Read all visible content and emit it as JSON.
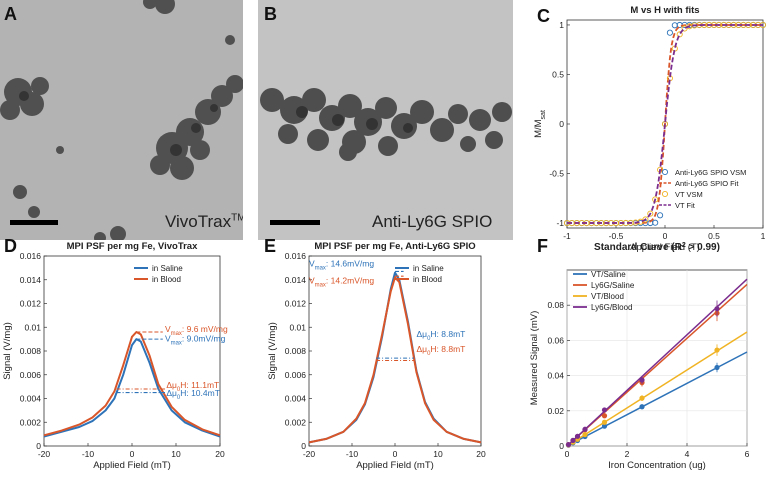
{
  "panels": {
    "a": {
      "letter": "A",
      "label": "VivoTrax",
      "label_sup": "TM"
    },
    "b": {
      "letter": "B",
      "label": "Anti-Ly6G SPIO"
    },
    "c": {
      "letter": "C"
    },
    "d": {
      "letter": "D"
    },
    "e": {
      "letter": "E"
    },
    "f": {
      "letter": "F"
    }
  },
  "colors": {
    "blue": "#2e73b8",
    "red": "#d9562a",
    "yellow": "#f0b323",
    "purple": "#7b2d8e"
  },
  "chart_data": [
    {
      "id": "C",
      "type": "line",
      "title": "M vs H with fits",
      "xlabel": "Applied Field (T)",
      "ylabel_main": "M/M",
      "ylabel_sub": "sat",
      "xlim": [
        -1,
        1
      ],
      "ylim": [
        -1.05,
        1.05
      ],
      "xticks": [
        -1,
        -0.5,
        0,
        0.5,
        1
      ],
      "xtick_labels": [
        "-1",
        "-0.5",
        "0",
        "0.5",
        "1"
      ],
      "yticks": [
        -1,
        -0.5,
        0,
        0.5,
        1
      ],
      "ytick_labels": [
        "-1",
        "-0.5",
        "0",
        "0.5",
        "1"
      ],
      "legend": [
        "Anti-Ly6G SPIO VSM",
        "Anti-Ly6G SPIO Fit",
        "VT VSM",
        "VT Fit"
      ],
      "legend_position": "bottom-right",
      "series": [
        {
          "name": "Anti-Ly6G SPIO VSM",
          "kind": "markers",
          "color": "#2e73b8",
          "model_k": 32
        },
        {
          "name": "Anti-Ly6G SPIO Fit",
          "kind": "dashed",
          "color": "#d9562a",
          "model_k": 16
        },
        {
          "name": "VT VSM",
          "kind": "markers",
          "color": "#f0b323",
          "model_k": 10
        },
        {
          "name": "VT Fit",
          "kind": "dashed",
          "color": "#7b2d8e",
          "model_k": 10
        }
      ]
    },
    {
      "id": "D",
      "type": "line",
      "title": "MPI PSF per mg Fe, VivoTrax",
      "xlabel": "Applied Field (mT)",
      "ylabel": "Signal (V/mg)",
      "xlim": [
        -20,
        20
      ],
      "ylim": [
        0,
        0.016
      ],
      "xticks": [
        -20,
        -10,
        0,
        10,
        20
      ],
      "xtick_labels": [
        "-20",
        "-10",
        "0",
        "10",
        "20"
      ],
      "yticks": [
        0,
        0.002,
        0.004,
        0.006,
        0.008,
        0.01,
        0.012,
        0.014,
        0.016
      ],
      "ytick_labels": [
        "0",
        "0.002",
        "0.004",
        "0.006",
        "0.008",
        "0.01",
        "0.012",
        "0.014",
        "0.016"
      ],
      "legend_position": "top-right",
      "series": [
        {
          "name": "in Saline",
          "color": "#2e73b8",
          "x": [
            -20,
            -16,
            -12,
            -9,
            -6,
            -4,
            -2,
            0,
            1,
            2,
            4,
            6,
            9,
            12,
            16,
            20
          ],
          "y": [
            0.0008,
            0.0012,
            0.0016,
            0.0021,
            0.003,
            0.004,
            0.006,
            0.0085,
            0.009,
            0.0088,
            0.007,
            0.0048,
            0.003,
            0.002,
            0.0013,
            0.0008
          ]
        },
        {
          "name": "in Blood",
          "color": "#d9562a",
          "x": [
            -20,
            -16,
            -12,
            -9,
            -6,
            -4,
            -2,
            0,
            1,
            2,
            4,
            6,
            9,
            12,
            16,
            20
          ],
          "y": [
            0.0009,
            0.0013,
            0.0018,
            0.0024,
            0.0034,
            0.0046,
            0.0068,
            0.0092,
            0.0096,
            0.0094,
            0.0076,
            0.0052,
            0.0033,
            0.0022,
            0.0014,
            0.0009
          ]
        }
      ],
      "annotations": [
        {
          "text_main": "V",
          "text_sub": "max",
          "text_rest": ": 9.6 mV/mg",
          "color": "#d9562a"
        },
        {
          "text_main": "V",
          "text_sub": "max",
          "text_rest": ": 9.0mV/mg",
          "color": "#2e73b8"
        },
        {
          "text_main": "Δμ",
          "text_sub": "0",
          "text_rest": "H: 11.1mT",
          "color": "#d9562a"
        },
        {
          "text_main": "Δμ",
          "text_sub": "0",
          "text_rest": "H: 10.4mT",
          "color": "#2e73b8"
        }
      ]
    },
    {
      "id": "E",
      "type": "line",
      "title": "MPI PSF per mg Fe, Anti-Ly6G SPIO",
      "xlabel": "Applied Field (mT)",
      "ylabel": "Signal (V/mg)",
      "xlim": [
        -20,
        20
      ],
      "ylim": [
        0,
        0.016
      ],
      "xticks": [
        -20,
        -10,
        0,
        10,
        20
      ],
      "xtick_labels": [
        "-20",
        "-10",
        "0",
        "10",
        "20"
      ],
      "yticks": [
        0,
        0.002,
        0.004,
        0.006,
        0.008,
        0.01,
        0.012,
        0.014,
        0.016
      ],
      "ytick_labels": [
        "0",
        "0.002",
        "0.004",
        "0.006",
        "0.008",
        "0.01",
        "0.012",
        "0.014",
        "0.016"
      ],
      "legend_position": "top-right",
      "series": [
        {
          "name": "in Saline",
          "color": "#2e73b8",
          "x": [
            -20,
            -16,
            -12,
            -9,
            -7,
            -5,
            -3,
            -1,
            0,
            1,
            3,
            5,
            7,
            9,
            12,
            16,
            20
          ],
          "y": [
            0.0003,
            0.0006,
            0.0012,
            0.0022,
            0.0035,
            0.0058,
            0.0092,
            0.0132,
            0.0146,
            0.014,
            0.0105,
            0.0063,
            0.0037,
            0.0023,
            0.0012,
            0.0006,
            0.0003
          ]
        },
        {
          "name": "in Blood",
          "color": "#d9562a",
          "x": [
            -20,
            -16,
            -12,
            -9,
            -7,
            -5,
            -3,
            -1,
            0,
            1,
            3,
            5,
            7,
            9,
            12,
            16,
            20
          ],
          "y": [
            0.0003,
            0.0006,
            0.0012,
            0.0023,
            0.0036,
            0.006,
            0.0094,
            0.013,
            0.0142,
            0.0138,
            0.0103,
            0.0062,
            0.0036,
            0.0022,
            0.0012,
            0.0006,
            0.0003
          ]
        }
      ],
      "annotations": [
        {
          "text_main": "V",
          "text_sub": "max",
          "text_rest": ": 14.6mV/mg",
          "color": "#2e73b8"
        },
        {
          "text_main": "V",
          "text_sub": "max",
          "text_rest": ": 14.2mV/mg",
          "color": "#d9562a"
        },
        {
          "text_main": "Δμ",
          "text_sub": "0",
          "text_rest": "H: 8.8mT",
          "color": "#2e73b8"
        },
        {
          "text_main": "Δμ",
          "text_sub": "0",
          "text_rest": "H: 8.8mT",
          "color": "#d9562a"
        }
      ]
    },
    {
      "id": "F",
      "type": "scatter",
      "title": "Standard Curve (R",
      "title_sup": "2",
      "title_rest": " > 0.99)",
      "xlabel": "Iron Concentration (ug)",
      "ylabel": "Measured Signal (mV)",
      "xlim": [
        0,
        6
      ],
      "ylim": [
        0,
        0.1
      ],
      "xticks": [
        0,
        2,
        4,
        6
      ],
      "xtick_labels": [
        "0",
        "2",
        "4",
        "6"
      ],
      "yticks": [
        0,
        0.02,
        0.04,
        0.06,
        0.08
      ],
      "ytick_labels": [
        "0",
        "0.02",
        "0.04",
        "0.06",
        "0.08"
      ],
      "legend_position": "top-left",
      "x": [
        0.05,
        0.2,
        0.35,
        0.6,
        1.25,
        2.5,
        5.0
      ],
      "series": [
        {
          "name": "VT/Saline",
          "color": "#2e73b8",
          "slope": 0.0089,
          "values": [
            0.0005,
            0.0018,
            0.0031,
            0.0054,
            0.0113,
            0.0223,
            0.0446
          ]
        },
        {
          "name": "Ly6G/Saline",
          "color": "#d9562a",
          "slope": 0.0153,
          "values": [
            0.0008,
            0.0031,
            0.0054,
            0.0092,
            0.0172,
            0.036,
            0.0755
          ]
        },
        {
          "name": "VT/Blood",
          "color": "#f0b323",
          "slope": 0.0108,
          "values": [
            0.0006,
            0.0022,
            0.0038,
            0.0065,
            0.0135,
            0.0272,
            0.0545
          ]
        },
        {
          "name": "Ly6G/Blood",
          "color": "#7b2d8e",
          "slope": 0.0158,
          "values": [
            0.0008,
            0.0032,
            0.0055,
            0.0095,
            0.0205,
            0.0375,
            0.078
          ]
        }
      ]
    }
  ]
}
